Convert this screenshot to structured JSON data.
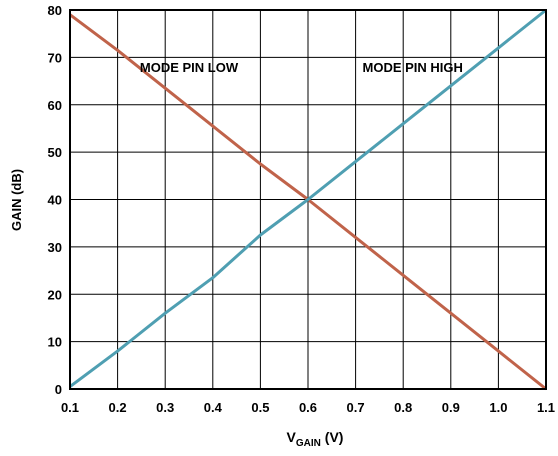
{
  "chart_data": {
    "type": "line",
    "xlabel_main": "V",
    "xlabel_sub": "GAIN",
    "xlabel_unit": " (V)",
    "ylabel": "GAIN (dB)",
    "xlim": [
      0.1,
      1.1
    ],
    "ylim": [
      0,
      80
    ],
    "x_ticks": [
      "0.1",
      "0.2",
      "0.3",
      "0.4",
      "0.5",
      "0.6",
      "0.7",
      "0.8",
      "0.9",
      "1.0",
      "1.1"
    ],
    "y_ticks": [
      "0",
      "10",
      "20",
      "30",
      "40",
      "50",
      "60",
      "70",
      "80"
    ],
    "grid": true,
    "series": [
      {
        "name": "MODE PIN LOW",
        "color": "#c0634a",
        "x": [
          0.1,
          0.2,
          0.3,
          0.4,
          0.5,
          0.6,
          0.7,
          0.8,
          0.9,
          1.0,
          1.1
        ],
        "values": [
          79,
          71.5,
          63.5,
          55.5,
          47.5,
          40,
          32,
          24,
          16,
          8,
          0
        ]
      },
      {
        "name": "MODE PIN HIGH",
        "color": "#4f9fb2",
        "x": [
          0.1,
          0.2,
          0.3,
          0.4,
          0.5,
          0.6,
          0.7,
          0.8,
          0.9,
          1.0,
          1.1
        ],
        "values": [
          0.5,
          8,
          16,
          23.5,
          32.5,
          40,
          48,
          56,
          64,
          72,
          80
        ]
      }
    ],
    "annotations": [
      {
        "text": "MODE PIN LOW",
        "x": 0.35,
        "y": 68
      },
      {
        "text": "MODE PIN HIGH",
        "x": 0.82,
        "y": 68
      }
    ]
  }
}
